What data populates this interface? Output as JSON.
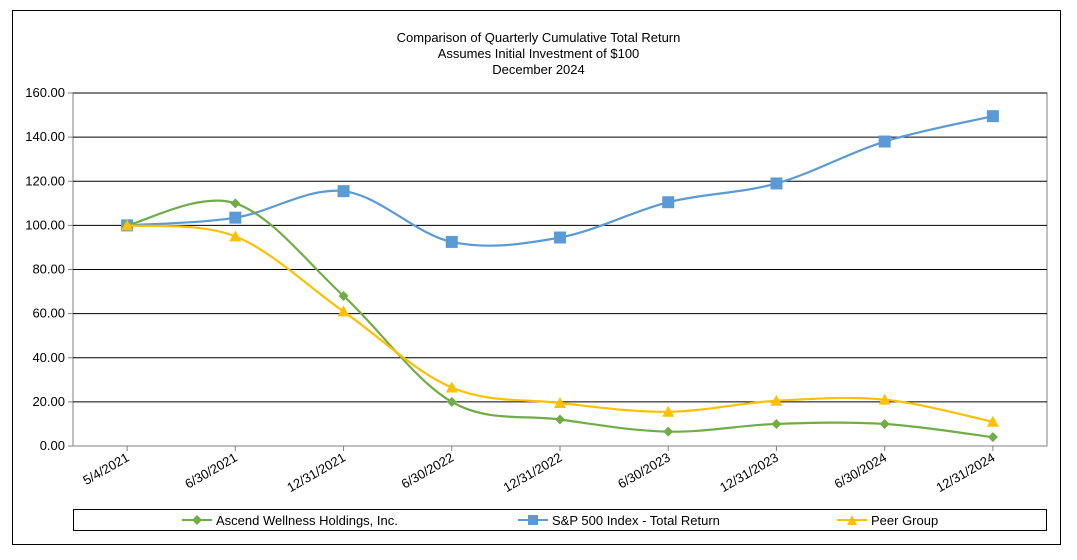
{
  "chart_data": {
    "type": "line",
    "title": "Comparison of Quarterly Cumulative Total Return",
    "subtitle_lines": [
      "Assumes Initial Investment of $100",
      "December 2024"
    ],
    "categories": [
      "5/4/2021",
      "6/30/2021",
      "12/31/2021",
      "6/30/2022",
      "12/31/2022",
      "6/30/2023",
      "12/31/2023",
      "6/30/2024",
      "12/31/2024"
    ],
    "ylim": [
      0,
      160
    ],
    "yticks": [
      "0.00",
      "20.00",
      "40.00",
      "60.00",
      "80.00",
      "100.00",
      "120.00",
      "140.00",
      "160.00"
    ],
    "grid": true,
    "smooth": true,
    "legend_position": "bottom",
    "series": [
      {
        "name": "Ascend Wellness Holdings, Inc.",
        "color": "#70ad47",
        "marker": "diamond",
        "values": [
          100,
          110,
          68,
          20,
          12,
          6.5,
          10,
          10,
          4
        ]
      },
      {
        "name": "S&P 500 Index - Total Return",
        "color": "#5b9bd5",
        "marker": "square",
        "values": [
          100,
          103.5,
          115.5,
          92.5,
          94.5,
          110.5,
          119,
          138,
          149.5
        ]
      },
      {
        "name": "Peer Group",
        "color": "#ffc000",
        "marker": "triangle",
        "values": [
          100,
          95,
          61,
          26.5,
          19.5,
          15.5,
          20.5,
          21,
          11
        ]
      }
    ]
  }
}
